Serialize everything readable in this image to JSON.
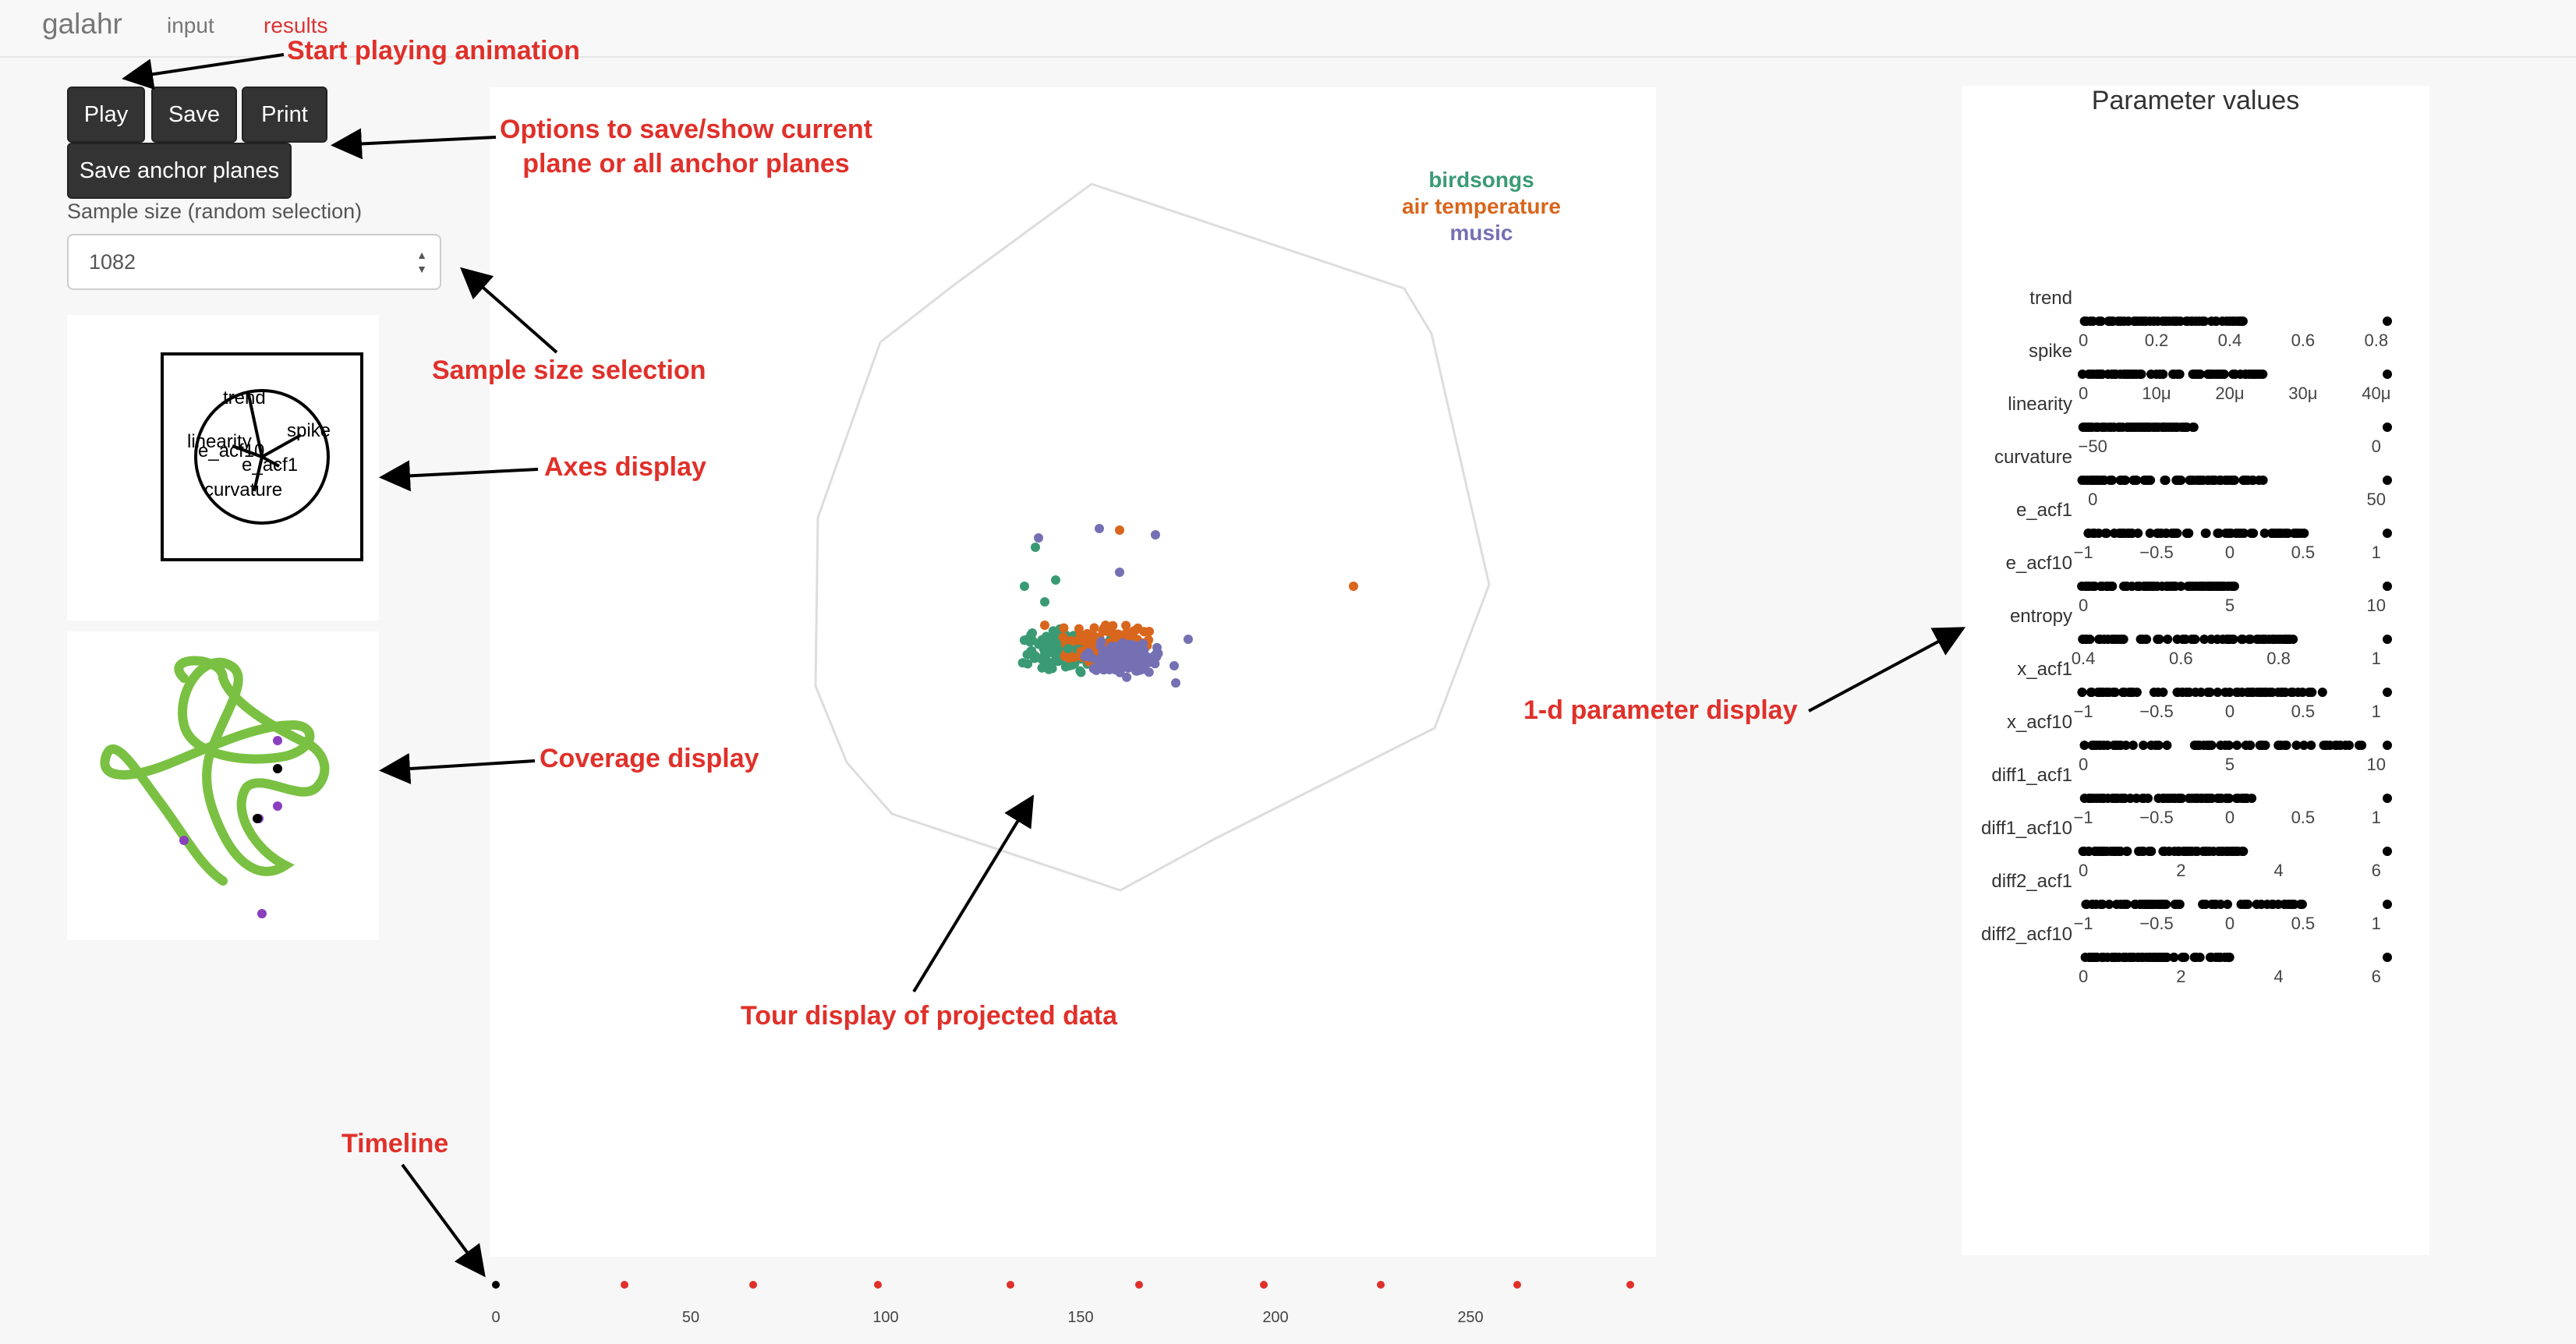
{
  "nav": {
    "brand": "galahr",
    "links": [
      "input",
      "results"
    ],
    "active": "results"
  },
  "controls": {
    "play_label": "Play",
    "save_label": "Save",
    "print_label": "Print",
    "save_anchor_label": "Save anchor planes",
    "sample_size_label": "Sample size (random selection)",
    "sample_size_value": "1082"
  },
  "axes_display": {
    "variables": [
      "trend",
      "spike",
      "linearity",
      "e_acf10",
      "e_acf1",
      "curvature"
    ]
  },
  "tour": {
    "legend": [
      {
        "name": "birdsongs",
        "color": "#3a9a74"
      },
      {
        "name": "air temperature",
        "color": "#d8661c"
      },
      {
        "name": "music",
        "color": "#7570b3"
      }
    ]
  },
  "timeline": {
    "ticks": [
      "0",
      "50",
      "100",
      "150",
      "200",
      "250"
    ],
    "points": [
      0,
      33,
      66,
      98,
      132,
      165,
      197,
      227,
      262,
      291
    ],
    "current": 0
  },
  "params": {
    "title": "Parameter values",
    "rows": [
      {
        "name": "trend",
        "ticks": [
          "0",
          "0.2",
          "0.4",
          "0.6",
          "0.8"
        ]
      },
      {
        "name": "spike",
        "ticks": [
          "0",
          "10μ",
          "20μ",
          "30μ",
          "40μ"
        ]
      },
      {
        "name": "linearity",
        "ticks": [
          "−50",
          "0"
        ]
      },
      {
        "name": "curvature",
        "ticks": [
          "0",
          "50"
        ]
      },
      {
        "name": "e_acf1",
        "ticks": [
          "−1",
          "−0.5",
          "0",
          "0.5",
          "1"
        ]
      },
      {
        "name": "e_acf10",
        "ticks": [
          "0",
          "5",
          "10"
        ]
      },
      {
        "name": "entropy",
        "ticks": [
          "0.4",
          "0.6",
          "0.8",
          "1"
        ]
      },
      {
        "name": "x_acf1",
        "ticks": [
          "−1",
          "−0.5",
          "0",
          "0.5",
          "1"
        ]
      },
      {
        "name": "x_acf10",
        "ticks": [
          "0",
          "5",
          "10"
        ]
      },
      {
        "name": "diff1_acf1",
        "ticks": [
          "−1",
          "−0.5",
          "0",
          "0.5",
          "1"
        ]
      },
      {
        "name": "diff1_acf10",
        "ticks": [
          "0",
          "2",
          "4",
          "6"
        ]
      },
      {
        "name": "diff2_acf1",
        "ticks": [
          "−1",
          "−0.5",
          "0",
          "0.5",
          "1"
        ]
      },
      {
        "name": "diff2_acf10",
        "ticks": [
          "0",
          "2",
          "4",
          "6"
        ]
      }
    ]
  },
  "annotations": {
    "play": "Start playing animation",
    "options_line1": "Options to save/show current",
    "options_line2": "plane or all anchor planes",
    "sample": "Sample size selection",
    "axes": "Axes display",
    "coverage": "Coverage display",
    "tour": "Tour display of projected data",
    "params": "1-d parameter display",
    "timeline": "Timeline"
  }
}
